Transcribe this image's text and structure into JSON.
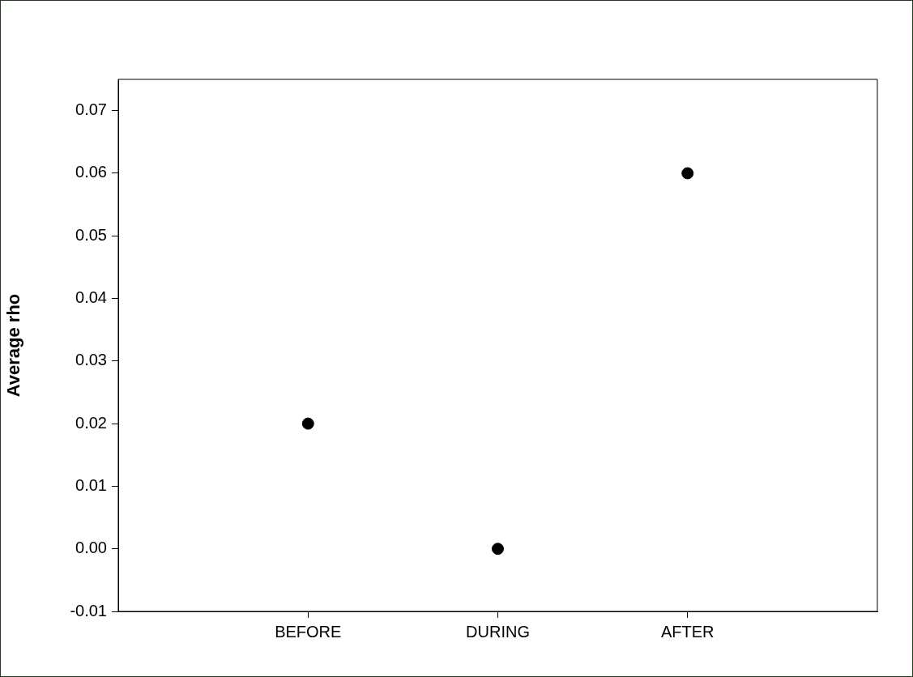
{
  "chart_data": {
    "type": "scatter",
    "ylabel": "Average rho",
    "categories": [
      "BEFORE",
      "DURING",
      "AFTER"
    ],
    "series": [
      {
        "color": "#000000",
        "values": [
          0.02,
          0.0,
          0.06
        ]
      }
    ],
    "ylim": [
      -0.01,
      0.075
    ],
    "yticks": [
      {
        "value": -0.01,
        "label": "-0.01"
      },
      {
        "value": 0,
        "label": "0.00"
      },
      {
        "value": 0.01,
        "label": "0.01"
      },
      {
        "value": 0.02,
        "label": "0.02"
      },
      {
        "value": 0.03,
        "label": "0.03"
      },
      {
        "value": 0.04,
        "label": "0.04"
      },
      {
        "value": 0.05,
        "label": "0.05"
      },
      {
        "value": 0.06,
        "label": "0.06"
      },
      {
        "value": 0.07,
        "label": "0.07"
      }
    ],
    "marker": "circle",
    "grid": false,
    "legend": false
  }
}
